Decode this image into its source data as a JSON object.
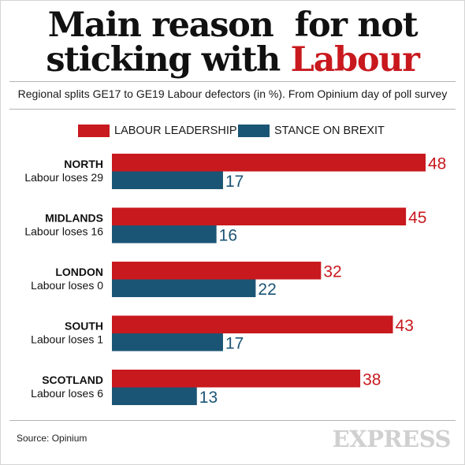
{
  "title": {
    "line1": "Main reason  for not",
    "line2_prefix": "sticking with ",
    "line2_accent": "Labour"
  },
  "subtitle": "Regional splits GE17 to GE19 Labour defectors (in %). From Opinium day of poll survey",
  "source": "Source: Opinium",
  "logo_text": "EXPRESS",
  "colors": {
    "leadership": "#c8191e",
    "brexit": "#1b5575",
    "accent": "#c8191e"
  },
  "chart_data": {
    "type": "bar",
    "orientation": "horizontal",
    "categories": [
      "NORTH",
      "MIDLANDS",
      "LONDON",
      "SOUTH",
      "SCOTLAND"
    ],
    "category_notes": [
      "Labour loses 29",
      "Labour loses 16",
      "Labour loses 0",
      "Labour loses 1",
      "Labour loses 6"
    ],
    "series": [
      {
        "name": "LABOUR LEADERSHIP",
        "values": [
          48,
          45,
          32,
          43,
          38
        ]
      },
      {
        "name": "STANCE ON BREXIT",
        "values": [
          17,
          16,
          22,
          17,
          13
        ]
      }
    ],
    "xlim": [
      0,
      50
    ],
    "grid": false,
    "legend_position": "top",
    "data_labels": true
  }
}
